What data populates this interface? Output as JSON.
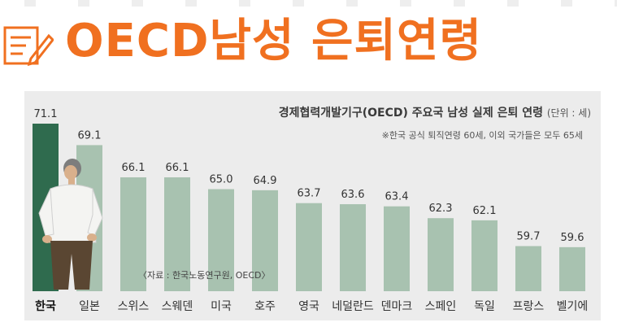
{
  "header": {
    "headline": "OECD남성 은퇴연령",
    "icon": "document-pencil-icon",
    "accent_color": "#f07020"
  },
  "chart_data": {
    "type": "bar",
    "title": "경제협력개발기구(OECD) 주요국 남성 실제 은퇴 연령",
    "unit": "(단위 : 세)",
    "note": "※한국 공식 퇴직연령 60세, 이외 국가들은 모두 65세",
    "source": "〈자료 : 한국노동연구원, OECD〉",
    "categories": [
      "한국",
      "일본",
      "스위스",
      "스웨덴",
      "미국",
      "호주",
      "영국",
      "네덜란드",
      "덴마크",
      "스페인",
      "독일",
      "프랑스",
      "벨기에"
    ],
    "values": [
      71.1,
      69.1,
      66.1,
      66.1,
      65.0,
      64.9,
      63.7,
      63.6,
      63.4,
      62.3,
      62.1,
      59.7,
      59.6
    ],
    "value_labels": [
      "71.1",
      "69.1",
      "66.1",
      "66.1",
      "65.0",
      "64.9",
      "63.7",
      "63.6",
      "63.4",
      "62.3",
      "62.1",
      "59.7",
      "59.6"
    ],
    "highlight_index": 0,
    "colors": {
      "highlight": "#2f6b4e",
      "bar": "#a8c2b0",
      "panel": "#ececec"
    },
    "grid": false,
    "legend": "none"
  }
}
